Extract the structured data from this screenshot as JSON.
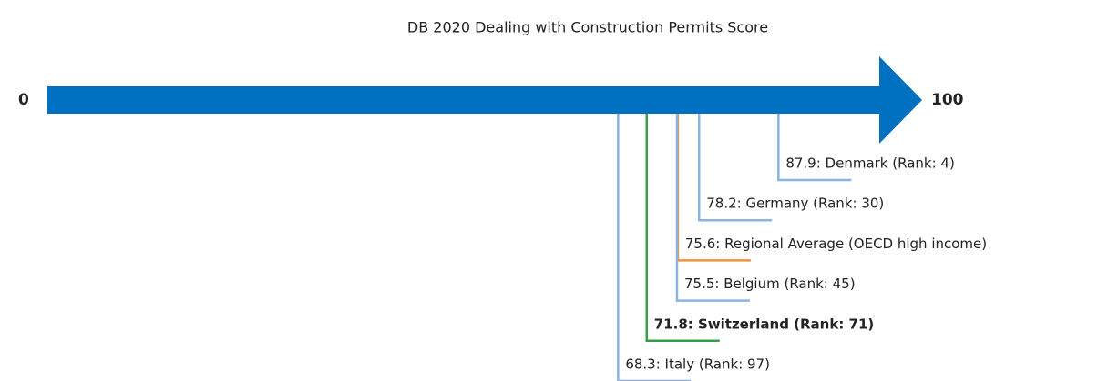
{
  "chart_data": {
    "type": "scale",
    "title": "DB 2020 Dealing with Construction Permits Score",
    "xlim": [
      0,
      100
    ],
    "xticks": [
      0,
      100
    ],
    "arrow_color": "#0070c0",
    "values": [
      87.9,
      78.2,
      75.6,
      75.5,
      71.8,
      68.3
    ],
    "value_labels": [
      "87.9: Denmark (Rank: 4)",
      "78.2: Germany (Rank: 30)",
      "75.6: Regional Average (OECD high income)",
      "75.5: Belgium (Rank: 45)",
      "71.8: Switzerland (Rank: 71)",
      "68.3: Italy (Rank: 97)"
    ],
    "colors": [
      "#8db3e2",
      "#8db3e2",
      "#f0913a",
      "#8db3e2",
      "#3a9e48",
      "#8db3e2"
    ],
    "highlight_index": 4
  }
}
